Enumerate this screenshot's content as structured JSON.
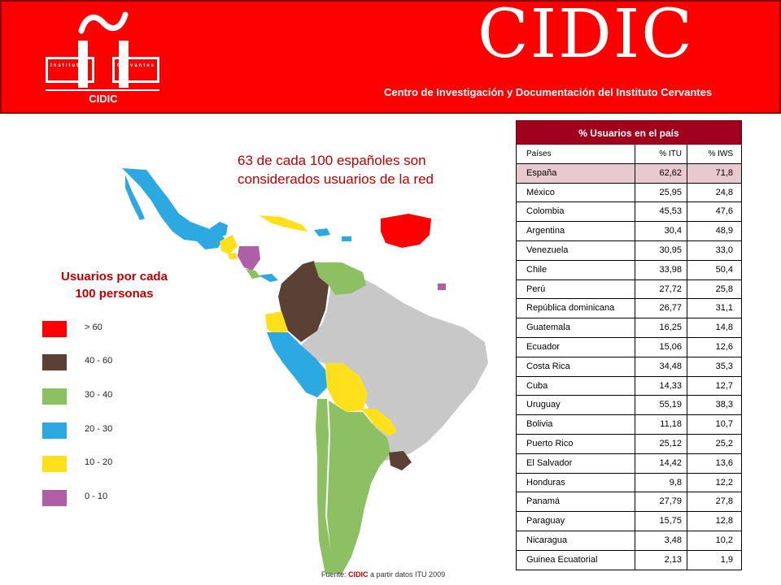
{
  "header": {
    "logo": {
      "word_left": "Instituto",
      "word_right": "Cervantes",
      "caption": "CIDIC"
    },
    "brand": "CIDIC",
    "tagline": "Centro de Investigación y Documentación del Instituto Cervantes"
  },
  "headline": [
    "63 de cada 100 españoles son",
    "considerados usuarios de la red"
  ],
  "legend": {
    "title_lines": [
      "Usuarios por cada",
      "100 personas"
    ],
    "items": [
      {
        "label": "> 60",
        "color": "#ff0000"
      },
      {
        "label": "40 - 60",
        "color": "#5b4036"
      },
      {
        "label": "30 - 40",
        "color": "#8cc063"
      },
      {
        "label": "20 - 30",
        "color": "#2ca9e1"
      },
      {
        "label": "10 - 20",
        "color": "#ffe01a"
      },
      {
        "label": "0 - 10",
        "color": "#b05ea6"
      }
    ]
  },
  "map_colors": {
    "brazil": "#c8c8c8",
    "ocean_none": "#ffffff"
  },
  "table": {
    "title": "% Usuarios en el país",
    "headers": [
      "Países",
      "% ITU",
      "% IWS"
    ],
    "rows": [
      [
        "España",
        "62,62",
        "71,8"
      ],
      [
        "México",
        "25,95",
        "24,8"
      ],
      [
        "Colombia",
        "45,53",
        "47,6"
      ],
      [
        "Argentina",
        "30,4",
        "48,9"
      ],
      [
        "Venezuela",
        "30,95",
        "33,0"
      ],
      [
        "Chile",
        "33,98",
        "50,4"
      ],
      [
        "Perú",
        "27,72",
        "25,8"
      ],
      [
        "República dominicana",
        "26,77",
        "31,1"
      ],
      [
        "Guatemala",
        "16,25",
        "14,8"
      ],
      [
        "Ecuador",
        "15,06",
        "12,6"
      ],
      [
        "Costa Rica",
        "34,48",
        "35,3"
      ],
      [
        "Cuba",
        "14,33",
        "12,7"
      ],
      [
        "Uruguay",
        "55,19",
        "38,3"
      ],
      [
        "Bolivia",
        "11,18",
        "10,7"
      ],
      [
        "Puerto Rico",
        "25,12",
        "25,2"
      ],
      [
        "El Salvador",
        "14,42",
        "13,6"
      ],
      [
        "Honduras",
        "9,8",
        "12,2"
      ],
      [
        "Panamá",
        "27,79",
        "27,8"
      ],
      [
        "Paraguay",
        "15,75",
        "12,8"
      ],
      [
        "Nicaragua",
        "3,48",
        "10,2"
      ],
      [
        "Guinea Ecuatorial",
        "2,13",
        "1,9"
      ]
    ]
  },
  "source": {
    "prefix": "Fuente: ",
    "brand": "CIDIC",
    "suffix": " a partir datos ITU 2009"
  }
}
